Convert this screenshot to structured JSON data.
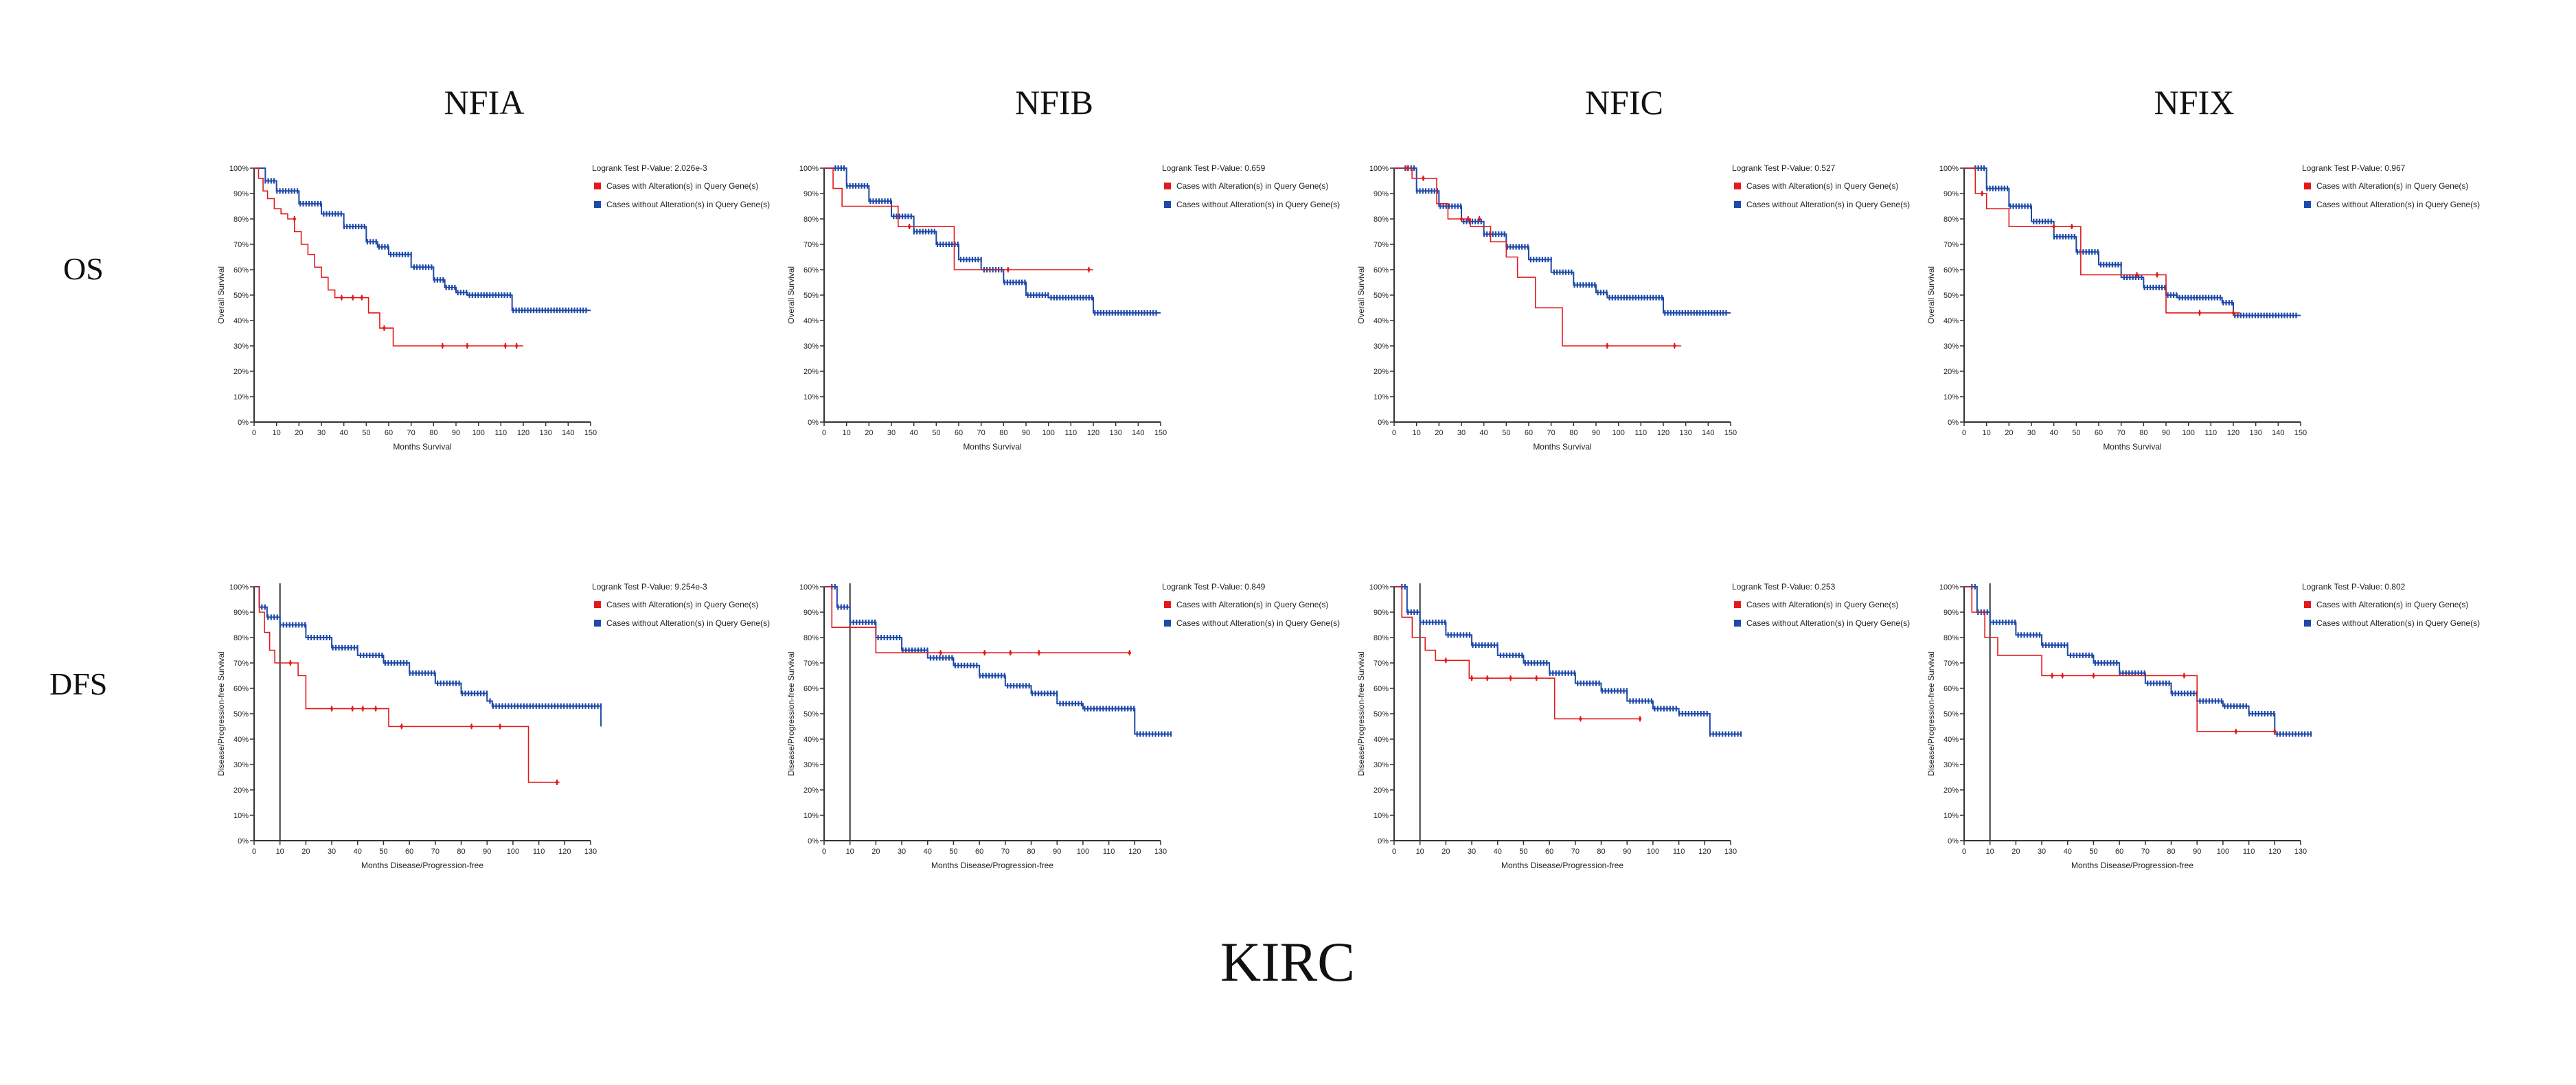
{
  "figure": {
    "main_title": "KIRC",
    "columns": [
      "NFIA",
      "NFIB",
      "NFIC",
      "NFIX"
    ],
    "rows": [
      "OS",
      "DFS"
    ]
  },
  "colors": {
    "altered": "#e31a1c",
    "unaltered": "#1f4aa8",
    "axis": "#333333"
  },
  "chart_data": [
    {
      "type": "line",
      "gene": "NFIA",
      "row": "OS",
      "xlabel": "Months Survival",
      "ylabel": "Overall Survival",
      "pvalue_text": "Logrank Test P-Value: 2.026e-3",
      "legend": [
        "Cases with Alteration(s) in Query Gene(s)",
        "Cases without Alteration(s) in Query Gene(s)"
      ],
      "xlim": [
        0,
        150
      ],
      "xticks": [
        0,
        10,
        20,
        30,
        40,
        50,
        60,
        70,
        80,
        90,
        100,
        110,
        120,
        130,
        140,
        150
      ],
      "ylim": [
        0,
        100
      ],
      "series": [
        {
          "name": "Cases with Alteration(s) in Query Gene(s)",
          "x": [
            0,
            2,
            4,
            6,
            9,
            12,
            15,
            18,
            21,
            24,
            27,
            30,
            33,
            36,
            48,
            51,
            56,
            62,
            120
          ],
          "y": [
            100,
            96,
            91,
            88,
            84,
            82,
            80,
            75,
            70,
            66,
            61,
            57,
            52,
            49,
            49,
            43,
            37,
            30,
            30
          ],
          "censors": [
            [
              18,
              80
            ],
            [
              39,
              49
            ],
            [
              44,
              49
            ],
            [
              48,
              49
            ],
            [
              58,
              37
            ],
            [
              84,
              30
            ],
            [
              95,
              30
            ],
            [
              112,
              30
            ],
            [
              117,
              30
            ]
          ]
        },
        {
          "name": "Cases without Alteration(s) in Query Gene(s)",
          "x": [
            0,
            5,
            10,
            20,
            30,
            40,
            50,
            55,
            60,
            70,
            80,
            85,
            90,
            95,
            110,
            115,
            150
          ],
          "y": [
            100,
            95,
            91,
            86,
            82,
            77,
            71,
            69,
            66,
            61,
            56,
            53,
            51,
            50,
            50,
            44,
            44
          ],
          "censors_range": [
            [
              5,
              148
            ]
          ]
        }
      ]
    },
    {
      "type": "line",
      "gene": "NFIB",
      "row": "OS",
      "xlabel": "Months Survival",
      "ylabel": "Overall Survival",
      "pvalue_text": "Logrank Test P-Value: 0.659",
      "legend": [
        "Cases with Alteration(s) in Query Gene(s)",
        "Cases without Alteration(s) in Query Gene(s)"
      ],
      "xlim": [
        0,
        150
      ],
      "xticks": [
        0,
        10,
        20,
        30,
        40,
        50,
        60,
        70,
        80,
        90,
        100,
        110,
        120,
        130,
        140,
        150
      ],
      "ylim": [
        0,
        100
      ],
      "series": [
        {
          "name": "Cases with Alteration(s) in Query Gene(s)",
          "x": [
            0,
            4,
            8,
            30,
            33,
            53,
            58,
            120
          ],
          "y": [
            100,
            92,
            85,
            85,
            77,
            77,
            60,
            60
          ],
          "censors": [
            [
              38,
              77
            ],
            [
              82,
              60
            ],
            [
              118,
              60
            ]
          ]
        },
        {
          "name": "Cases without Alteration(s) in Query Gene(s)",
          "x": [
            0,
            10,
            20,
            30,
            40,
            50,
            60,
            70,
            80,
            90,
            100,
            115,
            120,
            150
          ],
          "y": [
            100,
            93,
            87,
            81,
            75,
            70,
            64,
            60,
            55,
            50,
            49,
            49,
            43,
            43
          ],
          "censors_range": [
            [
              5,
              148
            ]
          ]
        }
      ]
    },
    {
      "type": "line",
      "gene": "NFIC",
      "row": "OS",
      "xlabel": "Months Survival",
      "ylabel": "Overall Survival",
      "pvalue_text": "Logrank Test P-Value: 0.527",
      "legend": [
        "Cases with Alteration(s) in Query Gene(s)",
        "Cases without Alteration(s) in Query Gene(s)"
      ],
      "xlim": [
        0,
        150
      ],
      "xticks": [
        0,
        10,
        20,
        30,
        40,
        50,
        60,
        70,
        80,
        90,
        100,
        110,
        120,
        130,
        140,
        150
      ],
      "ylim": [
        0,
        100
      ],
      "series": [
        {
          "name": "Cases with Alteration(s) in Query Gene(s)",
          "x": [
            0,
            8,
            13,
            19,
            24,
            29,
            34,
            43,
            50,
            55,
            63,
            75,
            128
          ],
          "y": [
            100,
            96,
            96,
            86,
            80,
            80,
            77,
            71,
            65,
            57,
            45,
            30,
            30
          ],
          "censors": [
            [
              6,
              100
            ],
            [
              13,
              96
            ],
            [
              30,
              80
            ],
            [
              33,
              80
            ],
            [
              38,
              80
            ],
            [
              95,
              30
            ],
            [
              125,
              30
            ]
          ]
        },
        {
          "name": "Cases without Alteration(s) in Query Gene(s)",
          "x": [
            0,
            10,
            20,
            30,
            40,
            50,
            60,
            70,
            80,
            90,
            95,
            110,
            120,
            150
          ],
          "y": [
            100,
            91,
            85,
            79,
            74,
            69,
            64,
            59,
            54,
            51,
            49,
            49,
            43,
            43
          ],
          "censors_range": [
            [
              5,
              148
            ]
          ]
        }
      ]
    },
    {
      "type": "line",
      "gene": "NFIX",
      "row": "OS",
      "xlabel": "Months Survival",
      "ylabel": "Overall Survival",
      "pvalue_text": "Logrank Test P-Value: 0.967",
      "legend": [
        "Cases with Alteration(s) in Query Gene(s)",
        "Cases without Alteration(s) in Query Gene(s)"
      ],
      "xlim": [
        0,
        150
      ],
      "xticks": [
        0,
        10,
        20,
        30,
        40,
        50,
        60,
        70,
        80,
        90,
        100,
        110,
        120,
        130,
        140,
        150
      ],
      "ylim": [
        0,
        100
      ],
      "series": [
        {
          "name": "Cases with Alteration(s) in Query Gene(s)",
          "x": [
            0,
            5,
            10,
            20,
            52,
            82,
            90,
            123
          ],
          "y": [
            100,
            90,
            84,
            77,
            58,
            58,
            43,
            43
          ],
          "censors": [
            [
              8,
              90
            ],
            [
              40,
              77
            ],
            [
              48,
              77
            ],
            [
              77,
              58
            ],
            [
              86,
              58
            ],
            [
              105,
              43
            ],
            [
              120,
              43
            ]
          ]
        },
        {
          "name": "Cases without Alteration(s) in Query Gene(s)",
          "x": [
            0,
            10,
            20,
            30,
            40,
            50,
            60,
            70,
            80,
            90,
            95,
            115,
            120,
            150
          ],
          "y": [
            100,
            92,
            85,
            79,
            73,
            67,
            62,
            57,
            53,
            50,
            49,
            47,
            42,
            42
          ],
          "censors_range": [
            [
              5,
              148
            ]
          ]
        }
      ]
    },
    {
      "type": "line",
      "gene": "NFIA",
      "row": "DFS",
      "xlabel": "Months Disease/Progression-free",
      "ylabel": "Disease/Progression-free Survival",
      "pvalue_text": "Logrank Test P-Value: 9.254e-3",
      "legend": [
        "Cases with Alteration(s) in Query Gene(s)",
        "Cases without Alteration(s) in Query Gene(s)"
      ],
      "xlim": [
        0,
        130
      ],
      "xticks": [
        0,
        10,
        20,
        30,
        40,
        50,
        60,
        70,
        80,
        90,
        100,
        110,
        120,
        130
      ],
      "ylim": [
        0,
        100
      ],
      "series": [
        {
          "name": "Cases with Alteration(s) in Query Gene(s)",
          "x": [
            0,
            2,
            4,
            6,
            8,
            14,
            17,
            20,
            46,
            52,
            106,
            118
          ],
          "y": [
            100,
            90,
            82,
            75,
            70,
            70,
            65,
            52,
            52,
            45,
            23,
            23
          ],
          "censors": [
            [
              14,
              70
            ],
            [
              30,
              52
            ],
            [
              38,
              52
            ],
            [
              42,
              52
            ],
            [
              47,
              52
            ],
            [
              57,
              45
            ],
            [
              84,
              45
            ],
            [
              95,
              45
            ],
            [
              117,
              23
            ]
          ]
        },
        {
          "name": "Cases without Alteration(s) in Query Gene(s)",
          "x": [
            0,
            2,
            5,
            10,
            20,
            30,
            40,
            50,
            60,
            70,
            80,
            90,
            92,
            122,
            134
          ],
          "y": [
            100,
            92,
            88,
            85,
            80,
            76,
            73,
            70,
            66,
            62,
            58,
            55,
            53,
            53,
            45
          ],
          "censors_range": [
            [
              3,
              134
            ]
          ]
        }
      ]
    },
    {
      "type": "line",
      "gene": "NFIB",
      "row": "DFS",
      "xlabel": "Months Disease/Progression-free",
      "ylabel": "Disease/Progression-free Survival",
      "pvalue_text": "Logrank Test P-Value: 0.849",
      "legend": [
        "Cases with Alteration(s) in Query Gene(s)",
        "Cases without Alteration(s) in Query Gene(s)"
      ],
      "xlim": [
        0,
        130
      ],
      "xticks": [
        0,
        10,
        20,
        30,
        40,
        50,
        60,
        70,
        80,
        90,
        100,
        110,
        120,
        130
      ],
      "ylim": [
        0,
        100
      ],
      "series": [
        {
          "name": "Cases with Alteration(s) in Query Gene(s)",
          "x": [
            0,
            3,
            20,
            118
          ],
          "y": [
            100,
            84,
            74,
            74
          ],
          "censors": [
            [
              45,
              74
            ],
            [
              62,
              74
            ],
            [
              72,
              74
            ],
            [
              83,
              74
            ],
            [
              118,
              74
            ]
          ]
        },
        {
          "name": "Cases without Alteration(s) in Query Gene(s)",
          "x": [
            0,
            5,
            10,
            20,
            30,
            40,
            50,
            60,
            70,
            80,
            90,
            100,
            120,
            134
          ],
          "y": [
            100,
            92,
            86,
            80,
            75,
            72,
            69,
            65,
            61,
            58,
            54,
            52,
            42,
            42
          ],
          "censors_range": [
            [
              3,
              134
            ]
          ]
        }
      ]
    },
    {
      "type": "line",
      "gene": "NFIC",
      "row": "DFS",
      "xlabel": "Months Disease/Progression-free",
      "ylabel": "Disease/Progression-free Survival",
      "pvalue_text": "Logrank Test P-Value: 0.253",
      "legend": [
        "Cases with Alteration(s) in Query Gene(s)",
        "Cases without Alteration(s) in Query Gene(s)"
      ],
      "xlim": [
        0,
        130
      ],
      "xticks": [
        0,
        10,
        20,
        30,
        40,
        50,
        60,
        70,
        80,
        90,
        100,
        110,
        120,
        130
      ],
      "ylim": [
        0,
        100
      ],
      "series": [
        {
          "name": "Cases with Alteration(s) in Query Gene(s)",
          "x": [
            0,
            3,
            7,
            12,
            16,
            29,
            62,
            95
          ],
          "y": [
            100,
            88,
            80,
            75,
            71,
            64,
            48,
            48
          ],
          "censors": [
            [
              20,
              71
            ],
            [
              30,
              64
            ],
            [
              36,
              64
            ],
            [
              45,
              64
            ],
            [
              55,
              64
            ],
            [
              72,
              48
            ],
            [
              95,
              48
            ]
          ]
        },
        {
          "name": "Cases without Alteration(s) in Query Gene(s)",
          "x": [
            0,
            5,
            10,
            20,
            30,
            40,
            50,
            60,
            70,
            80,
            90,
            100,
            110,
            122,
            134
          ],
          "y": [
            100,
            90,
            86,
            81,
            77,
            73,
            70,
            66,
            62,
            59,
            55,
            52,
            50,
            42,
            42
          ],
          "censors_range": [
            [
              3,
              134
            ]
          ]
        }
      ]
    },
    {
      "type": "line",
      "gene": "NFIX",
      "row": "DFS",
      "xlabel": "Months Disease/Progression-free",
      "ylabel": "Disease/Progression-free Survival",
      "pvalue_text": "Logrank Test P-Value: 0.802",
      "legend": [
        "Cases with Alteration(s) in Query Gene(s)",
        "Cases without Alteration(s) in Query Gene(s)"
      ],
      "xlim": [
        0,
        130
      ],
      "xticks": [
        0,
        10,
        20,
        30,
        40,
        50,
        60,
        70,
        80,
        90,
        100,
        110,
        120,
        130
      ],
      "ylim": [
        0,
        100
      ],
      "series": [
        {
          "name": "Cases with Alteration(s) in Query Gene(s)",
          "x": [
            0,
            3,
            8,
            13,
            30,
            88,
            90,
            120
          ],
          "y": [
            100,
            90,
            80,
            73,
            65,
            65,
            43,
            43
          ],
          "censors": [
            [
              34,
              65
            ],
            [
              38,
              65
            ],
            [
              50,
              65
            ],
            [
              85,
              65
            ],
            [
              105,
              43
            ],
            [
              120,
              43
            ]
          ]
        },
        {
          "name": "Cases without Alteration(s) in Query Gene(s)",
          "x": [
            0,
            5,
            10,
            20,
            30,
            40,
            50,
            60,
            70,
            80,
            90,
            100,
            110,
            120,
            134
          ],
          "y": [
            100,
            90,
            86,
            81,
            77,
            73,
            70,
            66,
            62,
            58,
            55,
            53,
            50,
            42,
            42
          ],
          "censors_range": [
            [
              3,
              134
            ]
          ]
        }
      ]
    }
  ]
}
